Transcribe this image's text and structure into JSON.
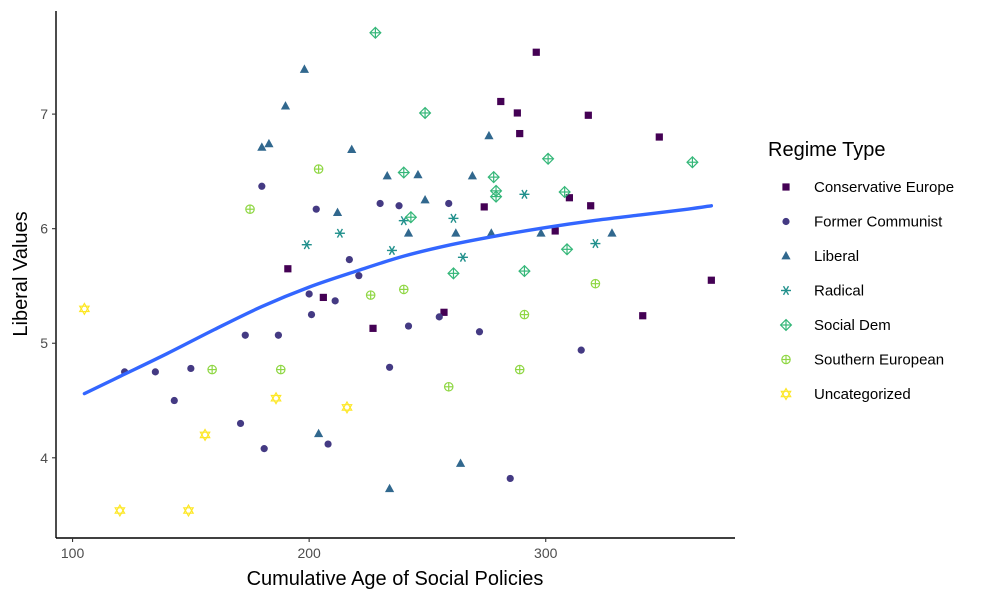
{
  "chart_data": {
    "type": "scatter",
    "xlabel": "Cumulative Age of Social Policies",
    "ylabel": "Liberal Values",
    "xlim": [
      93,
      380
    ],
    "ylim": [
      3.3,
      7.9
    ],
    "x_ticks": [
      100,
      200,
      300
    ],
    "y_ticks": [
      4,
      5,
      6,
      7
    ],
    "grid": false,
    "legend": {
      "title": "Regime Type",
      "placement": "right"
    },
    "series": [
      {
        "name": "Conservative Europe",
        "color": "#440154",
        "marker": "square",
        "points": [
          [
            191,
            5.65
          ],
          [
            206,
            5.4
          ],
          [
            227,
            5.13
          ],
          [
            257,
            5.27
          ],
          [
            274,
            6.19
          ],
          [
            281,
            7.11
          ],
          [
            288,
            7.01
          ],
          [
            289,
            6.83
          ],
          [
            296,
            7.54
          ],
          [
            304,
            5.98
          ],
          [
            310,
            6.27
          ],
          [
            318,
            6.99
          ],
          [
            319,
            6.2
          ],
          [
            341,
            5.24
          ],
          [
            348,
            6.8
          ],
          [
            370,
            5.55
          ]
        ]
      },
      {
        "name": "Former Communist",
        "color": "#443A83",
        "marker": "circle",
        "points": [
          [
            122,
            4.75
          ],
          [
            135,
            4.75
          ],
          [
            143,
            4.5
          ],
          [
            150,
            4.78
          ],
          [
            171,
            4.3
          ],
          [
            173,
            5.07
          ],
          [
            180,
            6.37
          ],
          [
            181,
            4.08
          ],
          [
            187,
            5.07
          ],
          [
            200,
            5.43
          ],
          [
            201,
            5.25
          ],
          [
            203,
            6.17
          ],
          [
            208,
            4.12
          ],
          [
            211,
            5.37
          ],
          [
            217,
            5.73
          ],
          [
            221,
            5.59
          ],
          [
            230,
            6.22
          ],
          [
            234,
            4.79
          ],
          [
            238,
            6.2
          ],
          [
            242,
            5.15
          ],
          [
            255,
            5.23
          ],
          [
            259,
            6.22
          ],
          [
            272,
            5.1
          ],
          [
            285,
            3.82
          ],
          [
            315,
            4.94
          ]
        ]
      },
      {
        "name": "Liberal",
        "color": "#31688E",
        "marker": "triangle",
        "points": [
          [
            180,
            6.71
          ],
          [
            183,
            6.74
          ],
          [
            190,
            7.07
          ],
          [
            198,
            7.39
          ],
          [
            204,
            4.21
          ],
          [
            212,
            6.14
          ],
          [
            218,
            6.69
          ],
          [
            233,
            6.46
          ],
          [
            234,
            3.73
          ],
          [
            242,
            5.96
          ],
          [
            246,
            6.47
          ],
          [
            249,
            6.25
          ],
          [
            262,
            5.96
          ],
          [
            264,
            3.95
          ],
          [
            269,
            6.46
          ],
          [
            276,
            6.81
          ],
          [
            277,
            5.96
          ],
          [
            298,
            5.96
          ],
          [
            328,
            5.96
          ]
        ]
      },
      {
        "name": "Radical",
        "color": "#21908C",
        "marker": "asterisk",
        "points": [
          [
            199,
            5.86
          ],
          [
            213,
            5.96
          ],
          [
            235,
            5.81
          ],
          [
            240,
            6.07
          ],
          [
            261,
            6.09
          ],
          [
            265,
            5.75
          ],
          [
            291,
            6.3
          ],
          [
            321,
            5.87
          ]
        ]
      },
      {
        "name": "Social Dem",
        "color": "#35B779",
        "marker": "diamond-plus",
        "points": [
          [
            228,
            7.71
          ],
          [
            240,
            6.49
          ],
          [
            243,
            6.1
          ],
          [
            249,
            7.01
          ],
          [
            261,
            5.61
          ],
          [
            278,
            6.45
          ],
          [
            279,
            6.33
          ],
          [
            279,
            6.28
          ],
          [
            291,
            5.63
          ],
          [
            301,
            6.61
          ],
          [
            308,
            6.32
          ],
          [
            309,
            5.82
          ],
          [
            362,
            6.58
          ]
        ]
      },
      {
        "name": "Southern European",
        "color": "#8FD744",
        "marker": "circle-plus",
        "points": [
          [
            159,
            4.77
          ],
          [
            175,
            6.17
          ],
          [
            188,
            4.77
          ],
          [
            204,
            6.52
          ],
          [
            226,
            5.42
          ],
          [
            240,
            5.47
          ],
          [
            259,
            4.62
          ],
          [
            289,
            4.77
          ],
          [
            291,
            5.25
          ],
          [
            321,
            5.52
          ]
        ]
      },
      {
        "name": "Uncategorized",
        "color": "#FDE725",
        "marker": "star-of-david",
        "points": [
          [
            105,
            5.3
          ],
          [
            120,
            3.54
          ],
          [
            149,
            3.54
          ],
          [
            156,
            4.2
          ],
          [
            186,
            4.52
          ],
          [
            216,
            4.44
          ]
        ]
      }
    ],
    "trend": {
      "type": "loess",
      "color": "#3366FF",
      "points": [
        [
          105,
          4.56
        ],
        [
          120,
          4.71
        ],
        [
          140,
          4.91
        ],
        [
          160,
          5.12
        ],
        [
          180,
          5.32
        ],
        [
          200,
          5.49
        ],
        [
          220,
          5.63
        ],
        [
          240,
          5.76
        ],
        [
          260,
          5.86
        ],
        [
          280,
          5.94
        ],
        [
          300,
          6.01
        ],
        [
          320,
          6.07
        ],
        [
          340,
          6.12
        ],
        [
          360,
          6.17
        ],
        [
          370,
          6.2
        ]
      ]
    }
  }
}
